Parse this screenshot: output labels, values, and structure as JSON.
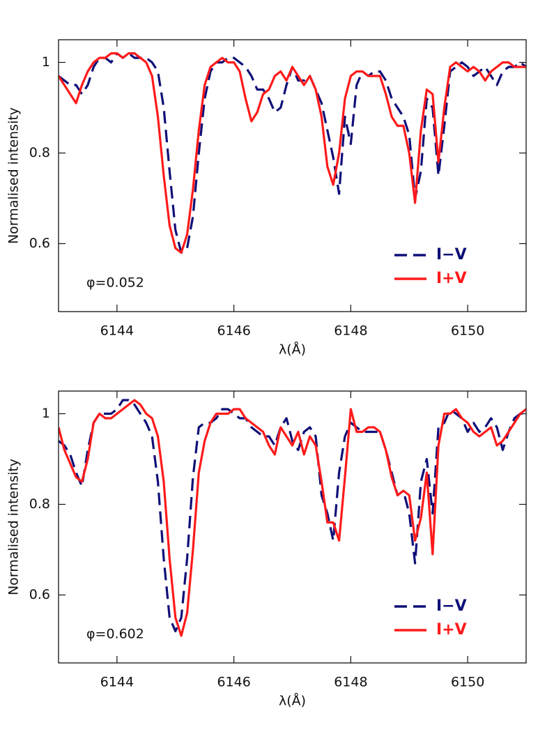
{
  "chart_data": [
    {
      "type": "line",
      "x_label": "λ(Å)",
      "y_label": "Normalised intensity",
      "annotation": "φ=0.052",
      "xlim": [
        6143,
        6151
      ],
      "xticks": [
        6144,
        6146,
        6148,
        6150
      ],
      "ylim": [
        0.45,
        1.05
      ],
      "yticks": [
        0.6,
        0.8,
        1
      ],
      "x": [
        6143.0,
        6143.1,
        6143.2,
        6143.3,
        6143.4,
        6143.5,
        6143.6,
        6143.7,
        6143.8,
        6143.9,
        6144.0,
        6144.1,
        6144.2,
        6144.3,
        6144.4,
        6144.5,
        6144.6,
        6144.7,
        6144.8,
        6144.9,
        6145.0,
        6145.1,
        6145.2,
        6145.3,
        6145.4,
        6145.5,
        6145.6,
        6145.7,
        6145.8,
        6145.9,
        6146.0,
        6146.1,
        6146.2,
        6146.3,
        6146.4,
        6146.5,
        6146.6,
        6146.7,
        6146.8,
        6146.9,
        6147.0,
        6147.1,
        6147.2,
        6147.3,
        6147.4,
        6147.5,
        6147.6,
        6147.7,
        6147.8,
        6147.9,
        6148.0,
        6148.1,
        6148.2,
        6148.3,
        6148.4,
        6148.5,
        6148.6,
        6148.7,
        6148.8,
        6148.9,
        6149.0,
        6149.1,
        6149.2,
        6149.3,
        6149.4,
        6149.5,
        6149.6,
        6149.7,
        6149.8,
        6149.9,
        6150.0,
        6150.1,
        6150.2,
        6150.3,
        6150.4,
        6150.5,
        6150.6,
        6150.7,
        6150.8,
        6150.9,
        6151.0
      ],
      "series": [
        {
          "name": "I−V",
          "color": "#0f0f78",
          "linestyle": "dashed",
          "values": [
            0.97,
            0.96,
            0.95,
            0.95,
            0.93,
            0.95,
            0.99,
            1.01,
            1.01,
            1.0,
            1.02,
            1.01,
            1.02,
            1.01,
            1.01,
            1.01,
            1.0,
            0.98,
            0.9,
            0.76,
            0.63,
            0.58,
            0.59,
            0.66,
            0.8,
            0.92,
            0.98,
            1.0,
            1.0,
            1.01,
            1.01,
            1.0,
            0.99,
            0.97,
            0.94,
            0.94,
            0.92,
            0.89,
            0.9,
            0.95,
            0.99,
            0.96,
            0.96,
            0.97,
            0.94,
            0.91,
            0.85,
            0.79,
            0.71,
            0.88,
            0.82,
            0.95,
            0.98,
            0.97,
            0.98,
            0.98,
            0.96,
            0.92,
            0.9,
            0.88,
            0.84,
            0.7,
            0.76,
            0.92,
            0.9,
            0.75,
            0.86,
            0.98,
            0.99,
            1.0,
            0.99,
            0.97,
            0.98,
            0.99,
            0.97,
            0.95,
            0.98,
            0.99,
            0.99,
            1.0,
            0.99
          ]
        },
        {
          "name": "I+V",
          "color": "#ff1a1a",
          "linestyle": "solid",
          "values": [
            0.97,
            0.95,
            0.93,
            0.91,
            0.95,
            0.98,
            1.0,
            1.01,
            1.01,
            1.02,
            1.02,
            1.01,
            1.02,
            1.02,
            1.01,
            1.0,
            0.97,
            0.88,
            0.75,
            0.64,
            0.59,
            0.58,
            0.62,
            0.72,
            0.85,
            0.95,
            0.99,
            1.0,
            1.01,
            1.0,
            1.0,
            0.98,
            0.92,
            0.87,
            0.89,
            0.93,
            0.94,
            0.97,
            0.98,
            0.96,
            0.99,
            0.97,
            0.95,
            0.97,
            0.94,
            0.88,
            0.77,
            0.73,
            0.8,
            0.92,
            0.97,
            0.98,
            0.98,
            0.97,
            0.97,
            0.97,
            0.93,
            0.88,
            0.86,
            0.86,
            0.8,
            0.69,
            0.85,
            0.94,
            0.93,
            0.78,
            0.9,
            0.99,
            1.0,
            0.99,
            0.98,
            0.99,
            0.98,
            0.96,
            0.98,
            0.99,
            1.0,
            1.0,
            0.99,
            0.99,
            0.99
          ]
        }
      ]
    },
    {
      "type": "line",
      "x_label": "λ(Å)",
      "y_label": "Normalised intensity",
      "annotation": "φ=0.602",
      "xlim": [
        6143,
        6151
      ],
      "xticks": [
        6144,
        6146,
        6148,
        6150
      ],
      "ylim": [
        0.45,
        1.05
      ],
      "yticks": [
        0.6,
        0.8,
        1
      ],
      "x": [
        6143.0,
        6143.1,
        6143.2,
        6143.3,
        6143.4,
        6143.5,
        6143.6,
        6143.7,
        6143.8,
        6143.9,
        6144.0,
        6144.1,
        6144.2,
        6144.3,
        6144.4,
        6144.5,
        6144.6,
        6144.7,
        6144.8,
        6144.9,
        6145.0,
        6145.1,
        6145.2,
        6145.3,
        6145.4,
        6145.5,
        6145.6,
        6145.7,
        6145.8,
        6145.9,
        6146.0,
        6146.1,
        6146.2,
        6146.3,
        6146.4,
        6146.5,
        6146.6,
        6146.7,
        6146.8,
        6146.9,
        6147.0,
        6147.1,
        6147.2,
        6147.3,
        6147.4,
        6147.5,
        6147.6,
        6147.7,
        6147.8,
        6147.9,
        6148.0,
        6148.1,
        6148.2,
        6148.3,
        6148.4,
        6148.5,
        6148.6,
        6148.7,
        6148.8,
        6148.9,
        6149.0,
        6149.1,
        6149.2,
        6149.3,
        6149.4,
        6149.5,
        6149.6,
        6149.7,
        6149.8,
        6149.9,
        6150.0,
        6150.1,
        6150.2,
        6150.3,
        6150.4,
        6150.5,
        6150.6,
        6150.7,
        6150.8,
        6150.9,
        6151.0
      ],
      "series": [
        {
          "name": "I−V",
          "color": "#0f0f78",
          "linestyle": "dashed",
          "values": [
            0.94,
            0.93,
            0.91,
            0.87,
            0.84,
            0.92,
            0.98,
            1.0,
            1.0,
            1.0,
            1.01,
            1.03,
            1.03,
            1.02,
            1.0,
            0.98,
            0.95,
            0.85,
            0.68,
            0.55,
            0.52,
            0.55,
            0.68,
            0.86,
            0.97,
            0.98,
            0.98,
            0.99,
            1.01,
            1.01,
            1.0,
            0.99,
            0.99,
            0.97,
            0.96,
            0.95,
            0.95,
            0.93,
            0.97,
            0.99,
            0.94,
            0.92,
            0.96,
            0.97,
            0.95,
            0.82,
            0.78,
            0.72,
            0.87,
            0.95,
            0.98,
            0.97,
            0.96,
            0.96,
            0.96,
            0.96,
            0.92,
            0.87,
            0.82,
            0.83,
            0.78,
            0.67,
            0.85,
            0.9,
            0.78,
            0.97,
            0.98,
            1.01,
            1.0,
            0.99,
            0.96,
            0.98,
            0.96,
            0.97,
            0.99,
            0.97,
            0.92,
            0.96,
            0.99,
            1.0,
            1.0
          ]
        },
        {
          "name": "I+V",
          "color": "#ff1a1a",
          "linestyle": "solid",
          "values": [
            0.97,
            0.92,
            0.89,
            0.86,
            0.85,
            0.9,
            0.98,
            1.0,
            0.99,
            0.99,
            1.0,
            1.01,
            1.02,
            1.03,
            1.02,
            1.0,
            0.99,
            0.95,
            0.85,
            0.68,
            0.55,
            0.51,
            0.56,
            0.7,
            0.87,
            0.94,
            0.98,
            1.0,
            1.0,
            1.0,
            1.01,
            1.01,
            0.99,
            0.98,
            0.97,
            0.96,
            0.93,
            0.91,
            0.97,
            0.95,
            0.93,
            0.96,
            0.91,
            0.95,
            0.93,
            0.85,
            0.76,
            0.76,
            0.72,
            0.86,
            1.01,
            0.96,
            0.96,
            0.97,
            0.97,
            0.96,
            0.92,
            0.86,
            0.82,
            0.83,
            0.82,
            0.72,
            0.77,
            0.87,
            0.69,
            0.93,
            1.0,
            1.0,
            1.01,
            0.99,
            0.98,
            0.96,
            0.95,
            0.96,
            0.97,
            0.93,
            0.94,
            0.96,
            0.98,
            1.0,
            1.01
          ]
        }
      ]
    }
  ]
}
